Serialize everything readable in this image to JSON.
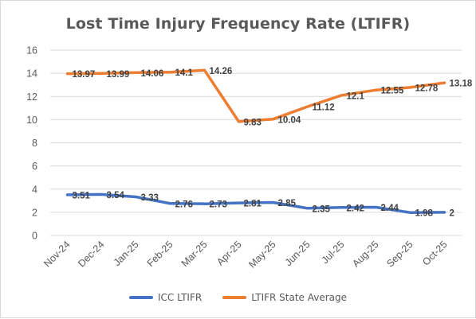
{
  "chart_data": {
    "type": "line",
    "title": "Lost Time Injury Frequency Rate (LTIFR)",
    "xlabel": "",
    "ylabel": "",
    "ylim": [
      0,
      16
    ],
    "yticks": [
      0,
      2,
      4,
      6,
      8,
      10,
      12,
      14,
      16
    ],
    "grid": "horizontal",
    "legend_position": "bottom",
    "categories": [
      "Nov-24",
      "Dec-24",
      "Jan-25",
      "Feb-25",
      "Mar-25",
      "Apr-25",
      "May-25",
      "Jun-25",
      "Jul-25",
      "Aug-25",
      "Sep-25",
      "Oct-25"
    ],
    "series": [
      {
        "name": "ICC LTIFR",
        "color": "#4472c4",
        "values": [
          3.51,
          3.54,
          3.33,
          2.76,
          2.73,
          2.81,
          2.85,
          2.35,
          2.42,
          2.44,
          1.98,
          2
        ],
        "labels": [
          "3.51",
          "3.54",
          "3.33",
          "2.76",
          "2.73",
          "2.81",
          "2.85",
          "2.35",
          "2.42",
          "2.44",
          "1.98",
          "2"
        ]
      },
      {
        "name": "LTIFR State Average",
        "color": "#ed7d31",
        "values": [
          13.97,
          13.99,
          14.06,
          14.1,
          14.26,
          9.83,
          10.04,
          11.12,
          12.1,
          12.55,
          12.78,
          13.18
        ],
        "labels": [
          "13.97",
          "13.99",
          "14.06",
          "14.1",
          "14.26",
          "9.83",
          "10.04",
          "11.12",
          "12.1",
          "12.55",
          "12.78",
          "13.18"
        ]
      }
    ]
  }
}
